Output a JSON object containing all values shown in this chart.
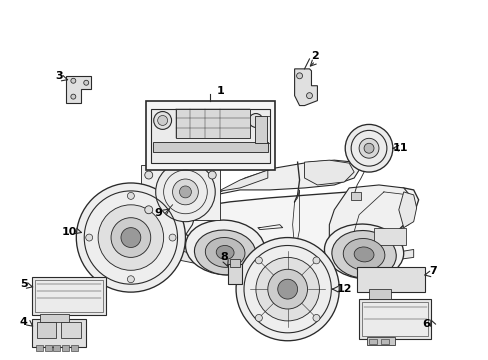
{
  "bg_color": "#ffffff",
  "line_color": "#2a2a2a",
  "figsize": [
    4.89,
    3.6
  ],
  "dpi": 100,
  "car": {
    "body_fill": "#f8f8f8",
    "window_fill": "#eeeeee",
    "wheel_fill": "#d8d8d8"
  }
}
